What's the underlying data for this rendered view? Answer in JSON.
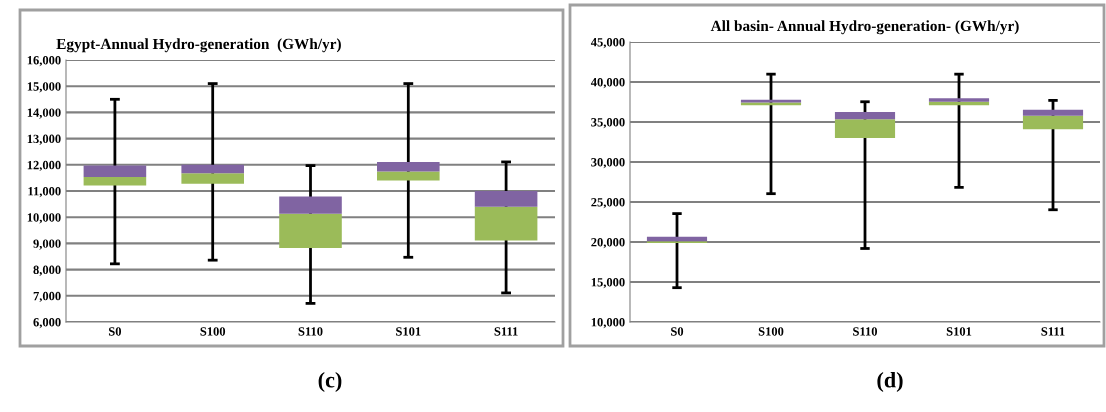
{
  "chart_data": [
    {
      "type": "box",
      "title": "Egypt-Annual Hydro-generation  (GWh/yr)",
      "categories": [
        "S0",
        "S100",
        "S110",
        "S101",
        "S111"
      ],
      "colors": [
        [
          "#9bbb59",
          "#8064a2"
        ],
        [
          "#9bbb59",
          "#8064a2"
        ],
        [
          "#9bbb59",
          "#8064a2"
        ],
        [
          "#9bbb59",
          "#8064a2"
        ],
        [
          "#9bbb59",
          "#8064a2"
        ]
      ],
      "ylim": [
        6000,
        16000
      ],
      "yticks": [
        {
          "value": 6000,
          "label": "6,000"
        },
        {
          "value": 7000,
          "label": "7,000"
        },
        {
          "value": 8000,
          "label": "8,000"
        },
        {
          "value": 9000,
          "label": "9,000"
        },
        {
          "value": 10000,
          "label": "10,000"
        },
        {
          "value": 11000,
          "label": "11,000"
        },
        {
          "value": 12000,
          "label": "12,000"
        },
        {
          "value": 13000,
          "label": "13,000"
        },
        {
          "value": 14000,
          "label": "14,000"
        },
        {
          "value": 15000,
          "label": "15,000"
        },
        {
          "value": 16000,
          "label": "16,000"
        }
      ],
      "grid": "y",
      "annotations": [
        "(c)"
      ],
      "boxes": [
        {
          "low": 8220,
          "q1": 11210,
          "median": 11530,
          "q3": 11970,
          "high": 14500
        },
        {
          "low": 8360,
          "q1": 11280,
          "median": 11680,
          "q3": 12000,
          "high": 15100
        },
        {
          "low": 6710,
          "q1": 8820,
          "median": 10130,
          "q3": 10790,
          "high": 11970
        },
        {
          "low": 8470,
          "q1": 11400,
          "median": 11740,
          "q3": 12110,
          "high": 15100
        },
        {
          "low": 7110,
          "q1": 9110,
          "median": 10400,
          "q3": 11000,
          "high": 12110
        }
      ]
    },
    {
      "type": "box",
      "title": "All basin- Annual Hydro-generation- (GWh/yr)",
      "categories": [
        "S0",
        "S100",
        "S110",
        "S101",
        "S111"
      ],
      "colors": [
        [
          "#9bbb59",
          "#8064a2"
        ],
        [
          "#9bbb59",
          "#8064a2"
        ],
        [
          "#9bbb59",
          "#8064a2"
        ],
        [
          "#9bbb59",
          "#8064a2"
        ],
        [
          "#9bbb59",
          "#8064a2"
        ]
      ],
      "ylim": [
        10000,
        45000
      ],
      "yticks": [
        {
          "value": 10000,
          "label": "10,000"
        },
        {
          "value": 15000,
          "label": "15,000"
        },
        {
          "value": 20000,
          "label": "20,000"
        },
        {
          "value": 25000,
          "label": "25,000"
        },
        {
          "value": 30000,
          "label": "30,000"
        },
        {
          "value": 35000,
          "label": "35,000"
        },
        {
          "value": 40000,
          "label": "40,000"
        },
        {
          "value": 45000,
          "label": "45,000"
        }
      ],
      "grid": "y",
      "annotations": [
        "(d)"
      ],
      "boxes": [
        {
          "low": 14290,
          "q1": 19880,
          "median": 20100,
          "q3": 20670,
          "high": 23550
        },
        {
          "low": 26040,
          "q1": 37090,
          "median": 37440,
          "q3": 37790,
          "high": 40980
        },
        {
          "low": 19190,
          "q1": 32990,
          "median": 35350,
          "q3": 36260,
          "high": 37530
        },
        {
          "low": 26830,
          "q1": 37090,
          "median": 37530,
          "q3": 37970,
          "high": 40980
        },
        {
          "low": 24030,
          "q1": 34080,
          "median": 35780,
          "q3": 36520,
          "high": 37700
        }
      ]
    }
  ]
}
